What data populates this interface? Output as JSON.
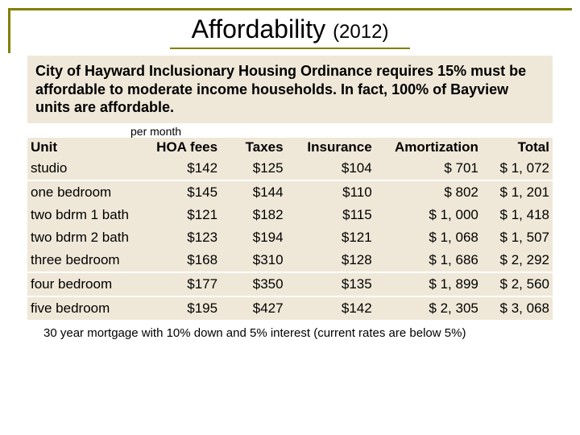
{
  "title_main": "Affordability",
  "title_year": "(2012)",
  "intro": "City of Hayward Inclusionary Housing Ordinance requires 15% must be affordable to moderate income households. In fact, 100% of Bayview units are affordable.",
  "per_month_label": "per month",
  "headers": {
    "unit": "Unit",
    "hoa": "HOA fees",
    "taxes": "Taxes",
    "insurance": "Insurance",
    "amortization": "Amortization",
    "total": "Total"
  },
  "rows": [
    {
      "unit": "studio",
      "hoa": "$142",
      "taxes": "$125",
      "insurance": "$104",
      "amortization": "$ 701",
      "total": "$ 1, 072"
    },
    {
      "unit": "one bedroom",
      "hoa": "$145",
      "taxes": "$144",
      "insurance": "$110",
      "amortization": "$ 802",
      "total": "$ 1, 201"
    },
    {
      "unit": "two bdrm 1 bath",
      "hoa": "$121",
      "taxes": "$182",
      "insurance": "$115",
      "amortization": "$ 1, 000",
      "total": "$ 1, 418"
    },
    {
      "unit": "two bdrm 2 bath",
      "hoa": "$123",
      "taxes": "$194",
      "insurance": "$121",
      "amortization": "$ 1, 068",
      "total": "$ 1, 507"
    },
    {
      "unit": "three bedroom",
      "hoa": "$168",
      "taxes": "$310",
      "insurance": "$128",
      "amortization": "$ 1, 686",
      "total": "$ 2, 292"
    },
    {
      "unit": "four bedroom",
      "hoa": "$177",
      "taxes": "$350",
      "insurance": "$135",
      "amortization": "$ 1, 899",
      "total": "$ 2, 560"
    },
    {
      "unit": "five bedroom",
      "hoa": "$195",
      "taxes": "$427",
      "insurance": "$142",
      "amortization": "$ 2, 305",
      "total": "$ 3, 068"
    }
  ],
  "footnote": "30 year mortgage with 10% down and 5% interest (current rates are below 5%)",
  "colors": {
    "olive": "#808000",
    "band": "#efe8d8",
    "text": "#000000",
    "bg": "#ffffff"
  }
}
